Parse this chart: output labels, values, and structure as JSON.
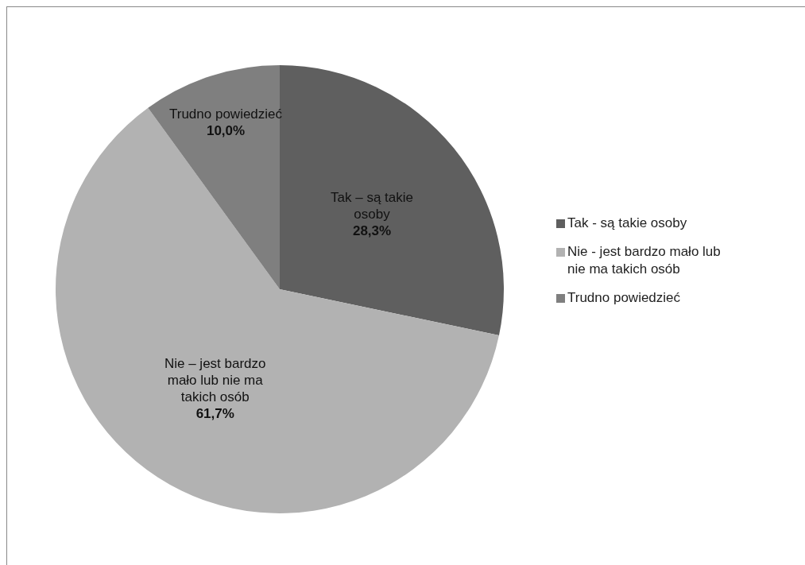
{
  "chart_data": {
    "type": "pie",
    "categories": [
      "Tak - są takie osoby",
      "Nie - jest bardzo mało lub nie ma takich osób",
      "Trudno powiedzieć"
    ],
    "values": [
      28.3,
      61.7,
      10.0
    ],
    "colors": [
      "#5f5f5f",
      "#b2b2b2",
      "#7f7f7f"
    ],
    "value_labels": [
      "28,3%",
      "61,7%",
      "10,0%"
    ],
    "annotations": [
      "Tak – są takie osoby",
      "Nie – jest bardzo mało lub nie ma takich osób",
      "Trudno powiedzieć"
    ],
    "legend": "right"
  }
}
